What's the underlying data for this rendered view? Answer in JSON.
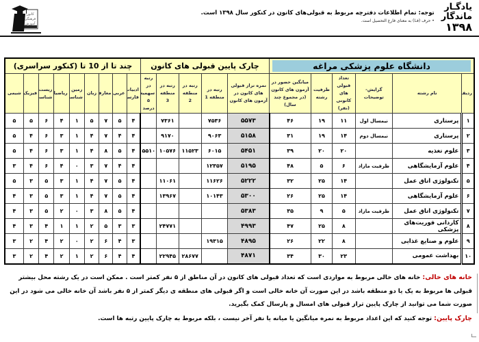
{
  "colors": {
    "title_bg": "#9ccddc",
    "header_bg": "#ffffbe",
    "score_col_bg": "#d9d9d9",
    "label_red": "#c00000"
  },
  "header": {
    "brand_line1": "یادگـار",
    "brand_line2": "ماندگار",
    "brand_line3": "۱۳۹۸",
    "notice": "توجه: تمام اطلاعات دفترچه مربوط به قبولی‌های کانون در کنکور سال ۱۳۹۸ است.",
    "subnotice": "• حرف (فـا) به معنای فارغ التحصیل است.",
    "logo": {
      "word1": "کانون",
      "word2": "فرهنگی",
      "word3": "آموزش"
    }
  },
  "table": {
    "university_title": "دانشگاه علوم پزشکی مراغه",
    "group_quartile": "چارک پایین قبولی های کانون",
    "group_subjects": "چند تا از 10 تا (کنکور سراسری)",
    "columns": {
      "row_no": "ردیف",
      "major": "نام رشته",
      "orientation": "گرایش-توضیحات",
      "kanoon_admits": "تعداد قبولی های کانونی (نفر)",
      "capacity": "ظرفیت رشته",
      "avg_attendance": "میانگین حضور در آزمون های کانون (در مجموع چند سال)",
      "score": "نمره تراز قبولی های کانون در آزمون های کانون",
      "region1": "رتبه در منطقه 1",
      "region2": "رتبه در منطقه 2",
      "region3": "رتبه در منطقه 3",
      "quota5": "رتبه در سهمیه ۵ درصد",
      "subjects": [
        "ادبیات فارسی",
        "عربی",
        "معارف",
        "زبان",
        "زمین شناسی",
        "ریاضیات",
        "زیست شناسی",
        "فیزیک",
        "شیمی"
      ]
    },
    "rows": [
      {
        "no": "۱",
        "major": "پرستاری",
        "note": "نیمسال اول",
        "admits": "۱۱",
        "capacity": "۱۹",
        "attendance": "۴۶",
        "score": "۵۵۷۳",
        "r1": "۷۵۳۶",
        "r2": "",
        "r3": "۷۳۶۱",
        "q5": "",
        "subjects": [
          "۴",
          "۵",
          "۷",
          "۵",
          "۱",
          "۴",
          "۶",
          "۵",
          "۵"
        ]
      },
      {
        "no": "۲",
        "major": "پرستاری",
        "note": "نیمسال دوم",
        "admits": "۱۴",
        "capacity": "۱۹",
        "attendance": "۳۱",
        "score": "۵۱۵۸",
        "r1": "۹۰۶۳",
        "r2": "",
        "r3": "۹۱۷۰",
        "q5": "",
        "subjects": [
          "۴",
          "۴",
          "۷",
          "۴",
          "۱",
          "۳",
          "۶",
          "۴",
          "۵"
        ]
      },
      {
        "no": "۳",
        "major": "علوم تغذیه",
        "note": "",
        "admits": "۲۰",
        "capacity": "۲۰",
        "attendance": "۳۹",
        "score": "۵۴۵۱",
        "r1": "۶۰۱۵",
        "r2": "۱۱۵۲۳",
        "r3": "۱۰۵۷۶",
        "q5": "۵۵۱۰",
        "subjects": [
          "۴",
          "۵",
          "۸",
          "۴",
          "۱",
          "۳",
          "۶",
          "۴",
          "۵"
        ]
      },
      {
        "no": "۴",
        "major": "علوم آزمایشگاهی",
        "note": "ظرفیت مازاد",
        "admits": "۶",
        "capacity": "۵",
        "attendance": "۴۸",
        "score": "۵۱۹۵",
        "r1": "۱۲۳۵۷",
        "r2": "",
        "r3": "",
        "q5": "",
        "subjects": [
          "۴",
          "۴",
          "۷",
          "۳",
          "۰",
          "۴",
          "۶",
          "۴",
          "۳"
        ]
      },
      {
        "no": "۵",
        "major": "تکنولوژی اتاق عمل",
        "note": "",
        "admits": "۱۴",
        "capacity": "۲۵",
        "attendance": "۳۲",
        "score": "۵۲۲۲",
        "r1": "۱۱۶۲۶",
        "r2": "",
        "r3": "۱۱۰۶۱",
        "q5": "",
        "subjects": [
          "۴",
          "۵",
          "۷",
          "۴",
          "۱",
          "۳",
          "۵",
          "۳",
          "۵"
        ]
      },
      {
        "no": "۶",
        "major": "علوم آزمایشگاهی",
        "note": "",
        "admits": "۱۴",
        "capacity": "۲۵",
        "attendance": "۲۶",
        "score": "۵۳۰۰",
        "r1": "۱۰۱۴۳",
        "r2": "",
        "r3": "۱۳۹۶۷",
        "q5": "",
        "subjects": [
          "۴",
          "۵",
          "۷",
          "۴",
          "۱",
          "۳",
          "۵",
          "۳",
          "۴"
        ]
      },
      {
        "no": "۷",
        "major": "تکنولوژی اتاق عمل",
        "note": "ظرفیت مازاد",
        "admits": "۵",
        "capacity": "۹",
        "attendance": "۳۵",
        "score": "۵۳۸۳",
        "r1": "",
        "r2": "",
        "r3": "",
        "q5": "",
        "subjects": [
          "۴",
          "۵",
          "۸",
          "۳",
          "۰",
          "۲",
          "۵",
          "۳",
          "۴"
        ]
      },
      {
        "no": "۸",
        "major": "کاردانی فوریت‌های پزشکی",
        "note": "",
        "admits": "۸",
        "capacity": "۲۵",
        "attendance": "۴۷",
        "score": "۴۹۹۳",
        "r1": "",
        "r2": "",
        "r3": "۲۴۷۷۱",
        "q5": "",
        "subjects": [
          "۳",
          "۳",
          "۵",
          "۲",
          "۱",
          "۱",
          "۴",
          "۳",
          "۴"
        ]
      },
      {
        "no": "۹",
        "major": "علوم و صنایع غذایی",
        "note": "",
        "admits": "۸",
        "capacity": "۲۲",
        "attendance": "۲۶",
        "score": "۴۸۹۵",
        "r1": "۱۹۳۱۵",
        "r2": "",
        "r3": "",
        "q5": "",
        "subjects": [
          "۳",
          "۴",
          "۶",
          "۲",
          "۰",
          "۲",
          "۴",
          "۲",
          "۳"
        ]
      },
      {
        "no": "۱۰",
        "major": "بهداشت عمومی",
        "note": "",
        "admits": "۲۳",
        "capacity": "۳۰",
        "attendance": "۳۴",
        "score": "۴۸۷۱",
        "r1": "",
        "r2": "۲۸۶۷۷",
        "r3": "۲۲۹۴۵",
        "q5": "",
        "subjects": [
          "۴",
          "۴",
          "۶",
          "۲",
          "۱",
          "۲",
          "۴",
          "۲",
          "۳"
        ]
      }
    ]
  },
  "footer": {
    "empty_cells_label": "خانه های خالی:",
    "empty_cells_text": "خانه های خالی مربوط به مواردی است که تعداد قبولی های کانون در آن مناطق از ۵ نفر کمتر است . ممکن است در یک رشته محل بیشتر قبولی ها مربوط به یک یا دو منطقه باشد در این صورت آن خانه خالی است و اگر قبولی های منطقه ی دیگر کمتر از ۵ نفر باشد آن خانه خالی می شود در این صورت شما می توانید از چارک پایین تراز قبولی های امسال و پارسال کمک بگیرید.",
    "quartile_label": "چارک پایین:",
    "quartile_text": "توجه کنید که این اعداد مربوط به نمره میانگین یا میانه یا نفر آخر نیست ، بلکه مربوط به چارک پایین رتبه ها است."
  }
}
